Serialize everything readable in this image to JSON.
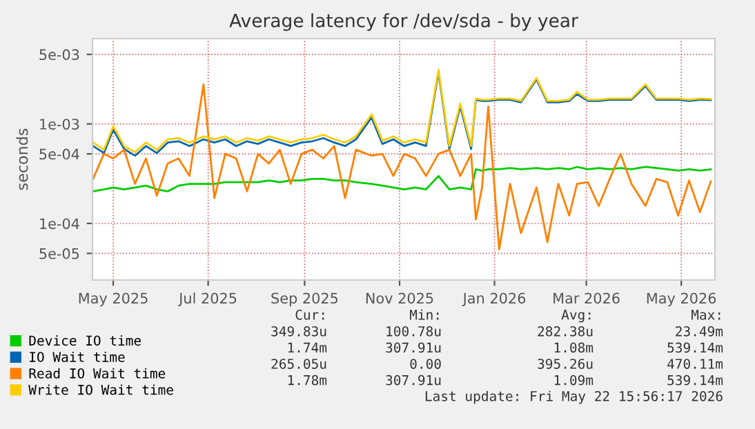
{
  "chart_data": {
    "type": "line",
    "title": "Average latency for /dev/sda - by year",
    "ylabel": "seconds",
    "log": "y",
    "grid": true,
    "legend": "bottom",
    "marker": "none",
    "line_style": "solid",
    "x": [
      "2025-04-18",
      "2025-04-25",
      "2025-05-01",
      "2025-05-08",
      "2025-05-15",
      "2025-05-22",
      "2025-05-29",
      "2025-06-05",
      "2025-06-12",
      "2025-06-19",
      "2025-06-28",
      "2025-07-05",
      "2025-07-12",
      "2025-07-19",
      "2025-07-26",
      "2025-08-02",
      "2025-08-09",
      "2025-08-16",
      "2025-08-23",
      "2025-08-30",
      "2025-09-06",
      "2025-09-13",
      "2025-09-20",
      "2025-09-27",
      "2025-10-04",
      "2025-10-14",
      "2025-10-21",
      "2025-10-28",
      "2025-11-04",
      "2025-11-11",
      "2025-11-18",
      "2025-11-26",
      "2025-12-03",
      "2025-12-10",
      "2025-12-17",
      "2025-12-20",
      "2025-12-24",
      "2025-12-28",
      "2026-01-04",
      "2026-01-11",
      "2026-01-18",
      "2026-01-28",
      "2026-02-04",
      "2026-02-11",
      "2026-02-18",
      "2026-02-23",
      "2026-03-02",
      "2026-03-09",
      "2026-03-16",
      "2026-03-23",
      "2026-03-30",
      "2026-04-08",
      "2026-04-15",
      "2026-04-22",
      "2026-04-29",
      "2026-05-06",
      "2026-05-13",
      "2026-05-20"
    ],
    "xlim": [
      "2025-04-17T16:00",
      "2026-05-22T16:00"
    ],
    "xticks": [
      {
        "value": "2025-05-01",
        "label": "May 2025"
      },
      {
        "value": "2025-07-01",
        "label": "Jul 2025"
      },
      {
        "value": "2025-09-01",
        "label": "Sep 2025"
      },
      {
        "value": "2025-11-01",
        "label": "Nov 2025"
      },
      {
        "value": "2026-01-01",
        "label": "Jan 2026"
      },
      {
        "value": "2026-03-01",
        "label": "Mar 2026"
      },
      {
        "value": "2026-05-01",
        "label": "May 2026"
      }
    ],
    "ylim": [
      2.7e-05,
      0.0072
    ],
    "yticks": [
      {
        "value": 5e-05,
        "label": "5e-05"
      },
      {
        "value": 0.0001,
        "label": "1e-04"
      },
      {
        "value": 0.0005,
        "label": "5e-04"
      },
      {
        "value": 0.001,
        "label": "1e-03"
      },
      {
        "value": 0.005,
        "label": "5e-03"
      }
    ],
    "series": [
      {
        "name": "Device IO time",
        "color": "#00cc00",
        "values": [
          0.00021,
          0.00022,
          0.00023,
          0.00022,
          0.00023,
          0.00024,
          0.00022,
          0.00021,
          0.00024,
          0.00025,
          0.00025,
          0.00025,
          0.00026,
          0.00026,
          0.00026,
          0.00026,
          0.00027,
          0.00026,
          0.00027,
          0.00027,
          0.00028,
          0.00028,
          0.00027,
          0.00027,
          0.00026,
          0.00025,
          0.00024,
          0.00023,
          0.00022,
          0.00023,
          0.00022,
          0.0003,
          0.00022,
          0.00023,
          0.00022,
          0.00035,
          0.00034,
          0.00035,
          0.00035,
          0.00036,
          0.00035,
          0.00036,
          0.00035,
          0.00036,
          0.00035,
          0.00037,
          0.00035,
          0.00036,
          0.00035,
          0.00036,
          0.00035,
          0.00037,
          0.00036,
          0.00035,
          0.00034,
          0.00035,
          0.00034,
          0.00035
        ]
      },
      {
        "name": "IO Wait time",
        "color": "#0066b3",
        "values": [
          0.0006,
          0.00051,
          0.00088,
          0.00056,
          0.00048,
          0.0006,
          0.00051,
          0.00065,
          0.00067,
          0.0006,
          0.0007,
          0.00065,
          0.0007,
          0.0006,
          0.00067,
          0.00063,
          0.0007,
          0.00065,
          0.0006,
          0.00065,
          0.00067,
          0.00072,
          0.00065,
          0.0006,
          0.0007,
          0.00116,
          0.00063,
          0.0007,
          0.0006,
          0.00065,
          0.0006,
          0.0033,
          0.00056,
          0.0015,
          0.00056,
          0.00175,
          0.0017,
          0.0017,
          0.00175,
          0.00175,
          0.00165,
          0.0028,
          0.00165,
          0.00165,
          0.0017,
          0.002,
          0.0017,
          0.0017,
          0.00175,
          0.00175,
          0.00175,
          0.0024,
          0.00175,
          0.00175,
          0.00175,
          0.0017,
          0.00175,
          0.00174
        ]
      },
      {
        "name": "Read IO Wait time",
        "color": "#ff8000",
        "values": [
          0.00028,
          0.0005,
          0.00045,
          0.00055,
          0.00025,
          0.00045,
          0.00019,
          0.0004,
          0.00045,
          0.0003,
          0.0025,
          0.00018,
          0.0005,
          0.00045,
          0.00021,
          0.0005,
          0.0004,
          0.00055,
          0.00025,
          0.0005,
          0.00055,
          0.00045,
          0.0006,
          0.00018,
          0.00055,
          0.00048,
          0.0005,
          0.0003,
          0.0005,
          0.00045,
          0.0003,
          0.0005,
          0.00055,
          0.0003,
          0.0005,
          0.00011,
          0.00023,
          0.0015,
          5.5e-05,
          0.00025,
          8e-05,
          0.00023,
          6.5e-05,
          0.00025,
          0.00012,
          0.00025,
          0.00026,
          0.00015,
          0.00028,
          0.0005,
          0.00025,
          0.00015,
          0.00028,
          0.00026,
          0.00012,
          0.00027,
          0.00013,
          0.000265
        ]
      },
      {
        "name": "Write IO Wait time",
        "color": "#ffcc00",
        "values": [
          0.00065,
          0.00055,
          0.00095,
          0.0006,
          0.00052,
          0.00065,
          0.00055,
          0.0007,
          0.00072,
          0.00065,
          0.00075,
          0.0007,
          0.00075,
          0.00065,
          0.00072,
          0.00068,
          0.00075,
          0.0007,
          0.00065,
          0.0007,
          0.00072,
          0.00078,
          0.0007,
          0.00065,
          0.00075,
          0.00125,
          0.00068,
          0.00075,
          0.00065,
          0.0007,
          0.00065,
          0.0035,
          0.0006,
          0.0016,
          0.0006,
          0.0018,
          0.00175,
          0.00175,
          0.0018,
          0.0018,
          0.0017,
          0.0029,
          0.0017,
          0.0017,
          0.00175,
          0.0021,
          0.00175,
          0.00175,
          0.0018,
          0.0018,
          0.0018,
          0.0025,
          0.0018,
          0.0018,
          0.0018,
          0.00175,
          0.0018,
          0.00178
        ]
      }
    ],
    "annotations": [
      "Cur:",
      "Min:",
      "Avg:",
      "Max:",
      "349.83u",
      "100.78u",
      "282.38u",
      "23.49m",
      "1.74m",
      "307.91u",
      "1.08m",
      "539.14m",
      "265.05u",
      "0.00",
      "395.26u",
      "470.11m",
      "1.78m",
      "307.91u",
      "1.09m",
      "539.14m",
      "Last update: Fri May 22 15:56:17 2026"
    ]
  }
}
